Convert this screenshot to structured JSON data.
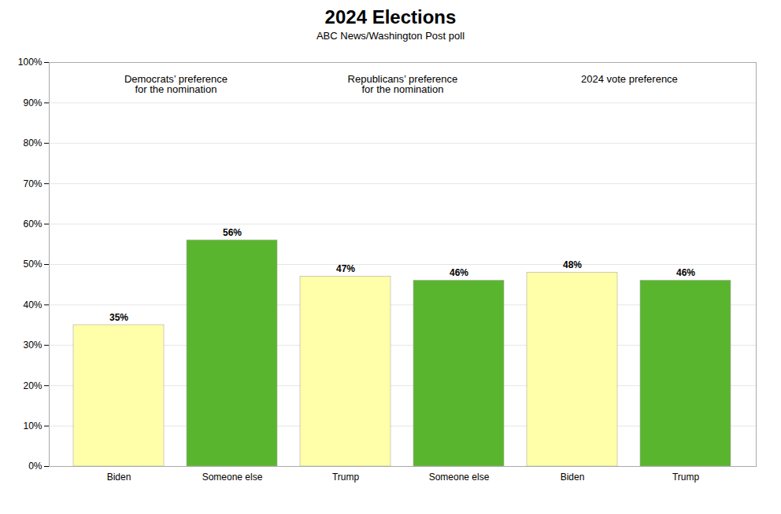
{
  "chart_data": {
    "type": "bar",
    "title": "2024 Elections",
    "subtitle": "ABC News/Washington Post poll",
    "categories": [
      "Biden",
      "Someone else",
      "Trump",
      "Someone else",
      "Biden",
      "Trump"
    ],
    "values": [
      35,
      56,
      47,
      46,
      48,
      46
    ],
    "value_labels": [
      "35%",
      "56%",
      "47%",
      "46%",
      "48%",
      "46%"
    ],
    "colors": [
      "#ffffaa",
      "#5ab52e",
      "#ffffaa",
      "#5ab52e",
      "#ffffaa",
      "#5ab52e"
    ],
    "annotations": [
      "Democrats’ preference\nfor the nomination",
      "Republicans’ preference\nfor the nomination",
      "2024 vote preference"
    ],
    "ylim": [
      0,
      100
    ],
    "yticks": [
      {
        "value": 0,
        "label": "0%"
      },
      {
        "value": 10,
        "label": "10%"
      },
      {
        "value": 20,
        "label": "20%"
      },
      {
        "value": 30,
        "label": "30%"
      },
      {
        "value": 40,
        "label": "40%"
      },
      {
        "value": 50,
        "label": "50%"
      },
      {
        "value": 60,
        "label": "60%"
      },
      {
        "value": 70,
        "label": "70%"
      },
      {
        "value": 80,
        "label": "80%"
      },
      {
        "value": 90,
        "label": "90%"
      },
      {
        "value": 100,
        "label": "100%"
      }
    ],
    "grid": true,
    "data_labels": true
  }
}
